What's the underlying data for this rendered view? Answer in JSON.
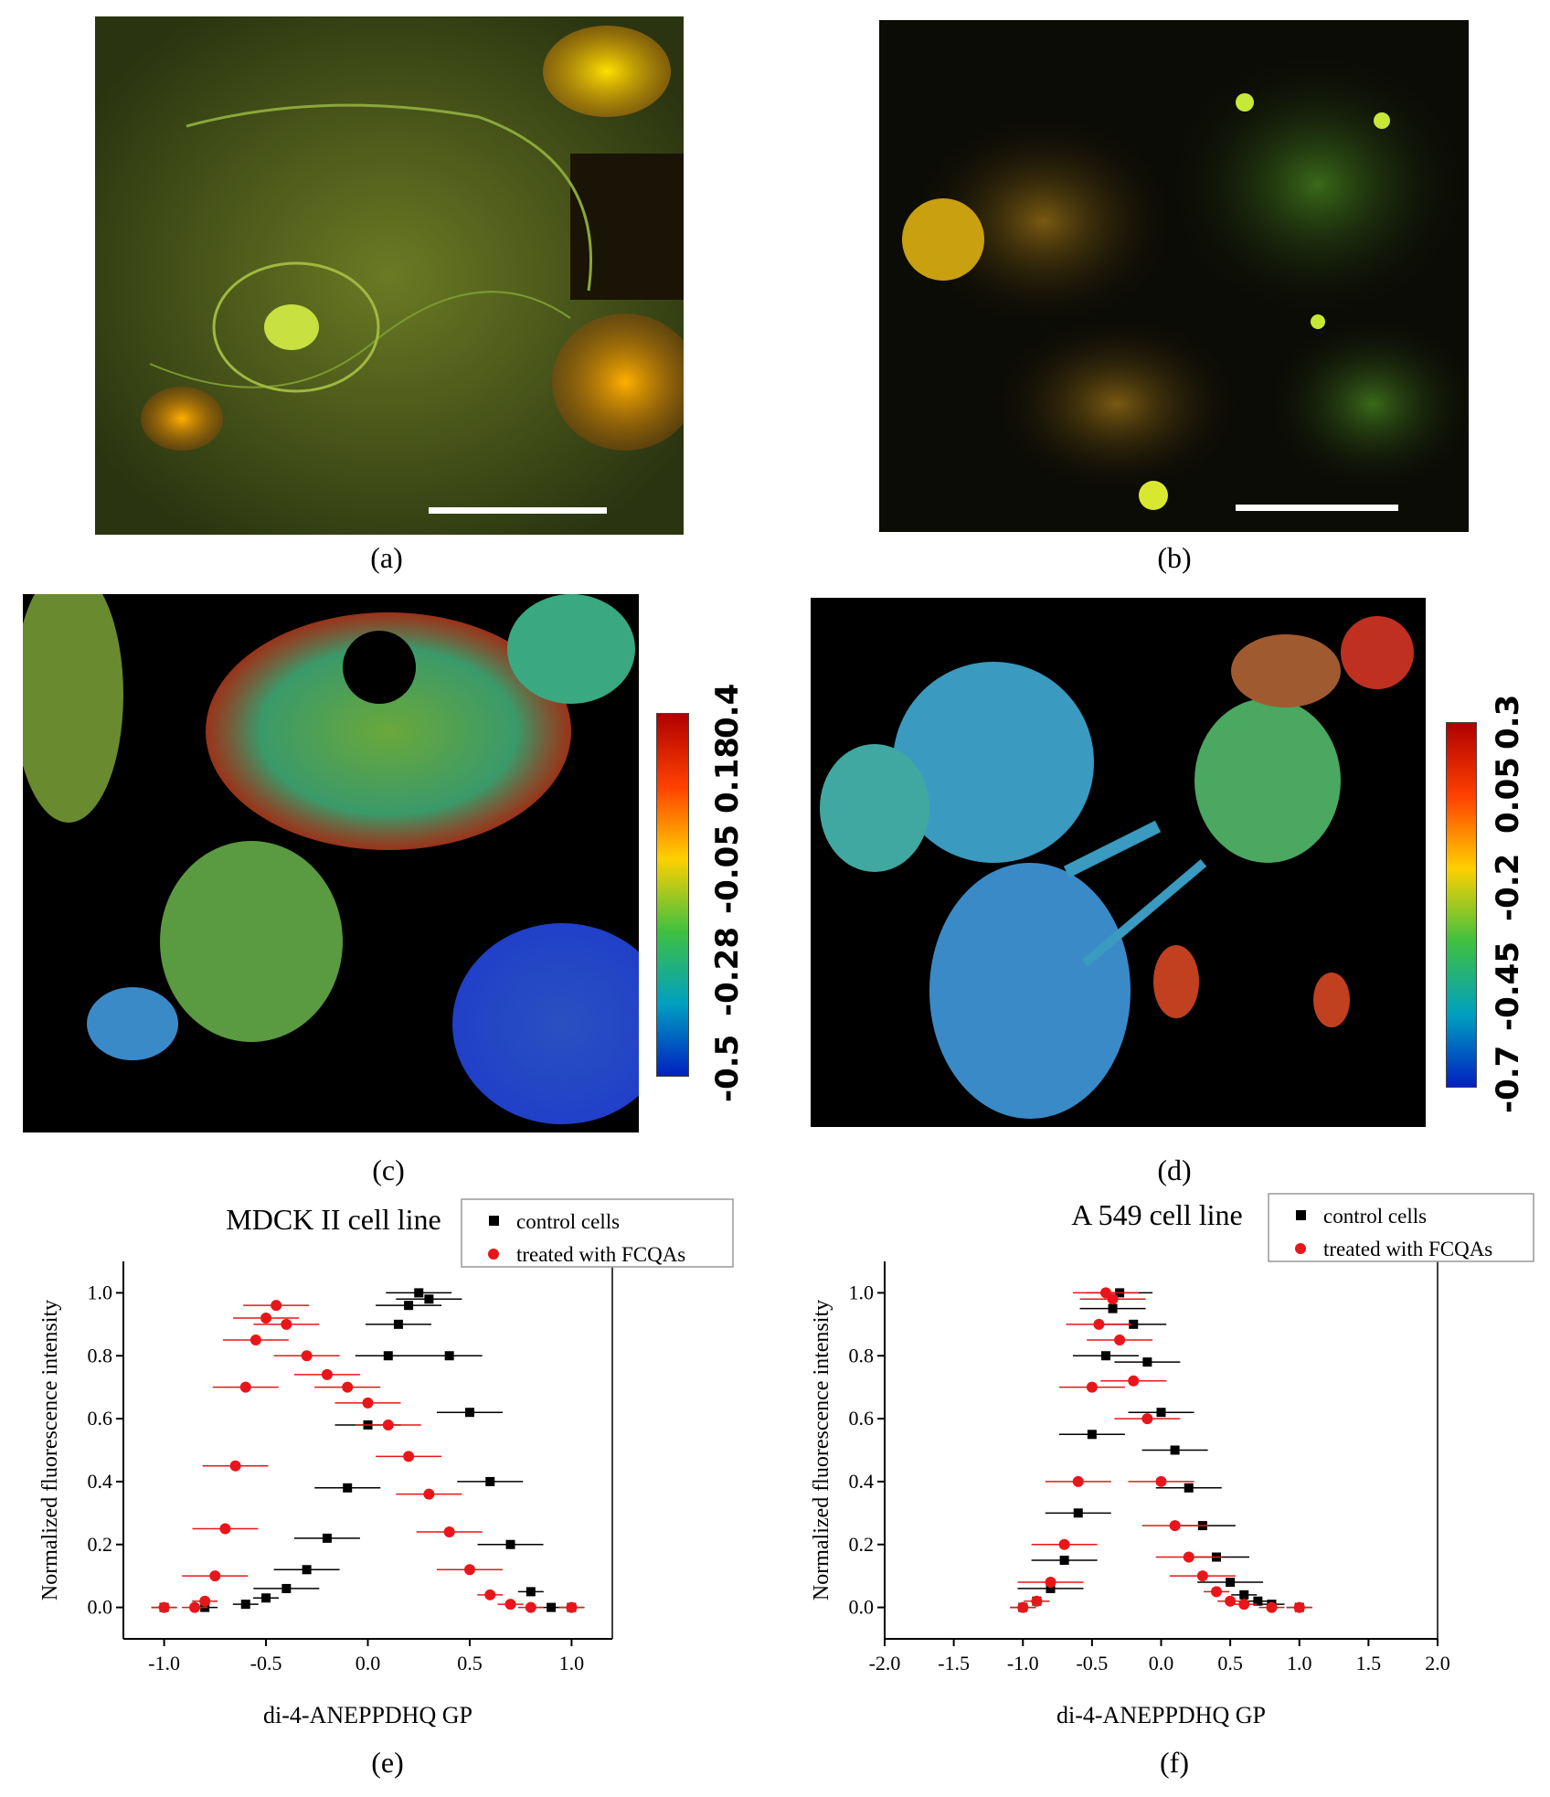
{
  "captions": [
    "(a)",
    "(b)",
    "(c)",
    "(d)",
    "(e)",
    "(f)"
  ],
  "colorbars": [
    {
      "ticks": [
        "-0.5",
        "-0.28",
        "-0.05",
        "0.18",
        "0.4"
      ]
    },
    {
      "ticks": [
        "-0.7",
        "-0.45",
        "-0.2",
        "0.05",
        "0.3"
      ]
    }
  ],
  "colors": {
    "control": "#000000",
    "treated": "#e8161a"
  },
  "chart_data": [
    {
      "type": "scatter",
      "title": "MDCK II cell line",
      "xlabel": "di-4-ANEPPDHQ GP",
      "ylabel": "Normalized fluorescence intensity",
      "xlim": [
        -1.2,
        1.2
      ],
      "ylim": [
        -0.1,
        1.1
      ],
      "xticks": [
        "-1.0",
        "-0.5",
        "0.0",
        "0.5",
        "1.0"
      ],
      "yticks": [
        "0.0",
        "0.2",
        "0.4",
        "0.6",
        "0.8",
        "1.0"
      ],
      "legend": "top-right",
      "series": [
        {
          "name": "control cells",
          "x": [
            -1.0,
            -0.8,
            -0.6,
            -0.5,
            -0.4,
            -0.3,
            -0.2,
            -0.1,
            0.0,
            0.1,
            0.15,
            0.2,
            0.25,
            0.3,
            0.4,
            0.5,
            0.6,
            0.7,
            0.8,
            0.9,
            1.0
          ],
          "y": [
            0.0,
            0.0,
            0.01,
            0.03,
            0.06,
            0.12,
            0.22,
            0.38,
            0.58,
            0.8,
            0.9,
            0.96,
            1.0,
            0.98,
            0.8,
            0.62,
            0.4,
            0.2,
            0.05,
            0.0,
            0.0
          ]
        },
        {
          "name": "treated with FCQAs",
          "x": [
            -1.0,
            -0.85,
            -0.8,
            -0.75,
            -0.7,
            -0.65,
            -0.6,
            -0.55,
            -0.5,
            -0.45,
            -0.4,
            -0.3,
            -0.2,
            -0.1,
            0.0,
            0.1,
            0.2,
            0.3,
            0.4,
            0.5,
            0.6,
            0.7,
            0.8,
            1.0
          ],
          "y": [
            0.0,
            0.0,
            0.02,
            0.1,
            0.25,
            0.45,
            0.7,
            0.85,
            0.92,
            0.96,
            0.9,
            0.8,
            0.74,
            0.7,
            0.65,
            0.58,
            0.48,
            0.36,
            0.24,
            0.12,
            0.04,
            0.01,
            0.0,
            0.0
          ]
        }
      ]
    },
    {
      "type": "scatter",
      "title": "A 549 cell line",
      "xlabel": "di-4-ANEPPDHQ GP",
      "ylabel": "Normalized fluorescence intensity",
      "xlim": [
        -2.0,
        2.0
      ],
      "ylim": [
        -0.1,
        1.1
      ],
      "xticks": [
        "-2.0",
        "-1.5",
        "-1.0",
        "-0.5",
        "0.0",
        "0.5",
        "1.0",
        "1.5",
        "2.0"
      ],
      "yticks": [
        "0.0",
        "0.2",
        "0.4",
        "0.6",
        "0.8",
        "1.0"
      ],
      "legend": "top-right",
      "series": [
        {
          "name": "control cells",
          "x": [
            -1.0,
            -0.9,
            -0.8,
            -0.7,
            -0.6,
            -0.5,
            -0.4,
            -0.35,
            -0.3,
            -0.2,
            -0.1,
            0.0,
            0.1,
            0.2,
            0.3,
            0.4,
            0.5,
            0.6,
            0.7,
            0.8,
            1.0
          ],
          "y": [
            0.0,
            0.02,
            0.06,
            0.15,
            0.3,
            0.55,
            0.8,
            0.95,
            1.0,
            0.9,
            0.78,
            0.62,
            0.5,
            0.38,
            0.26,
            0.16,
            0.08,
            0.04,
            0.02,
            0.01,
            0.0
          ]
        },
        {
          "name": "treated with FCQAs",
          "x": [
            -1.0,
            -0.9,
            -0.8,
            -0.7,
            -0.6,
            -0.5,
            -0.45,
            -0.4,
            -0.35,
            -0.3,
            -0.2,
            -0.1,
            0.0,
            0.1,
            0.2,
            0.3,
            0.4,
            0.5,
            0.6,
            0.8,
            1.0
          ],
          "y": [
            0.0,
            0.02,
            0.08,
            0.2,
            0.4,
            0.7,
            0.9,
            1.0,
            0.98,
            0.85,
            0.72,
            0.6,
            0.4,
            0.26,
            0.16,
            0.1,
            0.05,
            0.02,
            0.01,
            0.0,
            0.0
          ]
        }
      ]
    }
  ]
}
